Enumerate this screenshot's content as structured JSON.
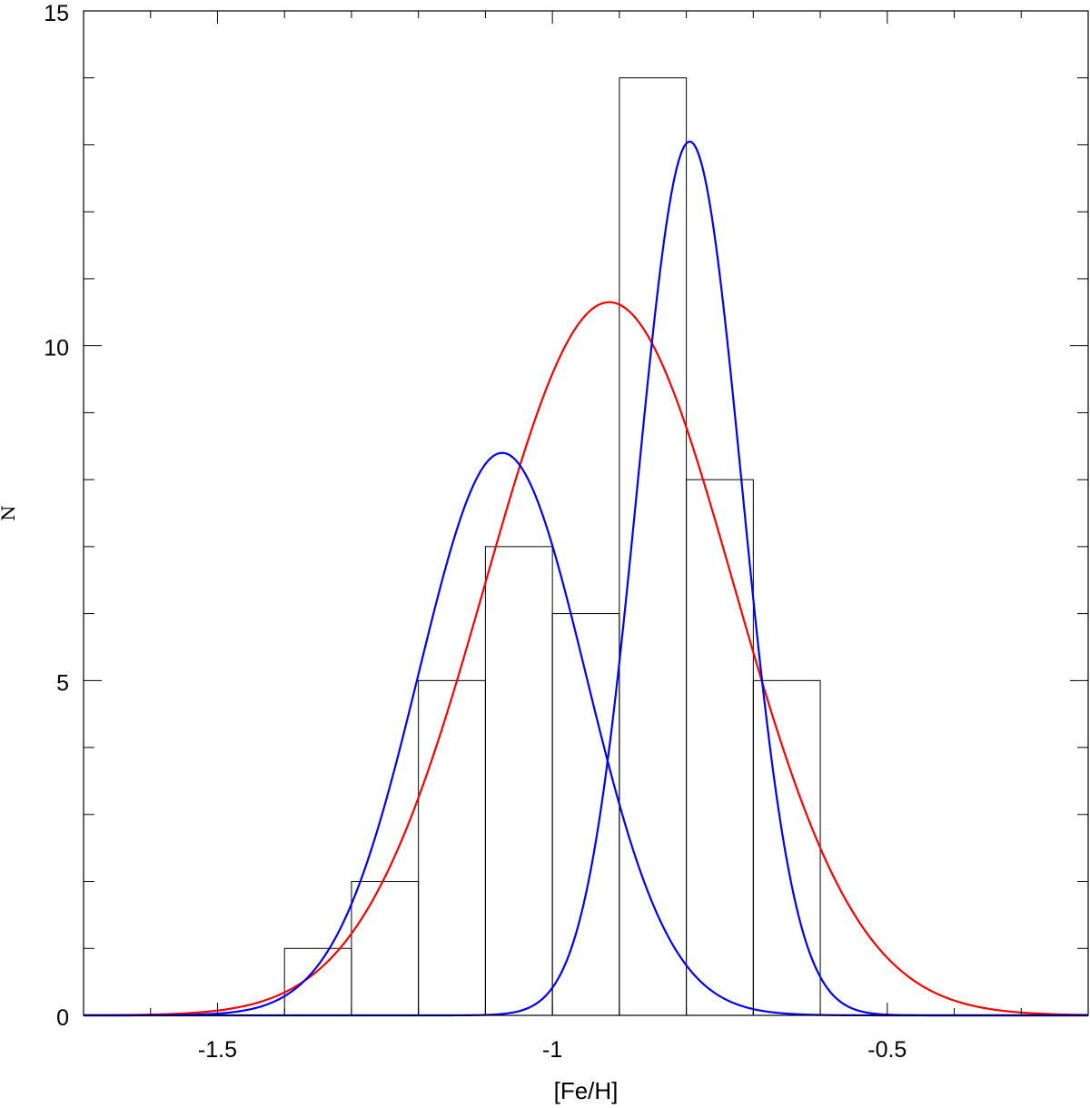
{
  "chart_data": {
    "type": "line",
    "xlabel": "[Fe/H]",
    "ylabel": "N",
    "xlim": [
      -1.7,
      -0.2
    ],
    "ylim": [
      0,
      15
    ],
    "x_ticks": [
      -1.5,
      -1,
      -0.5
    ],
    "x_tick_labels": [
      "-1.5",
      "-1",
      "-0.5"
    ],
    "y_ticks": [
      0,
      5,
      10,
      15
    ],
    "y_tick_labels": [
      "0",
      "5",
      "10",
      "15"
    ],
    "grid": false,
    "histogram": {
      "name": "",
      "color": "#000000",
      "bin_edges": [
        -1.4,
        -1.3,
        -1.2,
        -1.1,
        -1.0,
        -0.9,
        -0.8,
        -0.7,
        -0.6
      ],
      "counts": [
        1,
        2,
        5,
        7,
        6,
        14,
        8,
        5
      ]
    },
    "series": [
      {
        "color": "#ff0000",
        "kind": "gaussian",
        "amplitude": 10.65,
        "mean": -0.915,
        "sigma": 0.185
      },
      {
        "color": "#0000ff",
        "kind": "gaussian",
        "amplitude": 8.4,
        "mean": -1.075,
        "sigma": 0.125
      },
      {
        "color": "#0000ff",
        "kind": "gaussian",
        "amplitude": 13.05,
        "mean": -0.795,
        "sigma": 0.078
      }
    ]
  }
}
